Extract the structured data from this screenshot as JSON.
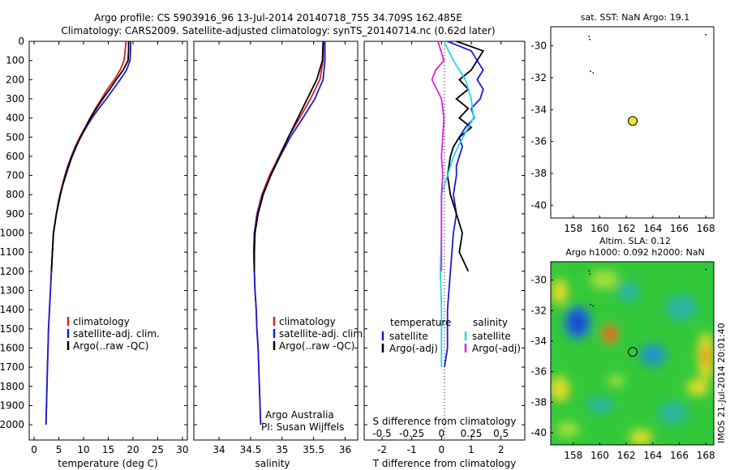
{
  "header": {
    "line1": "Argo profile: CS 5903916_96 13-Jul-2014 20140718_755 34.709S 162.485E",
    "line2": "Climatology: CARS2009. Satellite-adjusted climatology: synTS_20140714.nc (0.62d later)"
  },
  "depth_axis": {
    "ticks": [
      0,
      100,
      200,
      300,
      400,
      500,
      600,
      700,
      800,
      900,
      1000,
      1100,
      1200,
      1300,
      1400,
      1500,
      1600,
      1700,
      1800,
      1900,
      2000
    ],
    "range": [
      0,
      2080
    ],
    "reversed": true
  },
  "colors": {
    "climatology": "#d62020",
    "satellite": "#1a1adc",
    "argo": "#000000",
    "salinity_satellite": "#22d8e0",
    "salinity_argo": "#e020e0",
    "marker": "#e6e62a"
  },
  "chart_data": [
    {
      "type": "line",
      "name": "temperature-panel",
      "xlabel": "temperature (deg C)",
      "xlim": [
        -1,
        31
      ],
      "xticks": [
        0,
        5,
        10,
        15,
        20,
        25,
        30
      ],
      "legend": [
        "climatology",
        "satellite-adj. clim.",
        "Argo(..raw -QC)"
      ],
      "legend_placement": "lower-center",
      "series": [
        {
          "key": "climatology",
          "values": [
            [
              18.6,
              0
            ],
            [
              18.4,
              50
            ],
            [
              18.2,
              100
            ],
            [
              17.4,
              150
            ],
            [
              16.2,
              200
            ],
            [
              14.8,
              250
            ],
            [
              13.6,
              300
            ],
            [
              12.4,
              350
            ],
            [
              11.3,
              400
            ],
            [
              10.3,
              450
            ],
            [
              9.2,
              500
            ],
            [
              8.3,
              550
            ],
            [
              7.5,
              600
            ],
            [
              6.8,
              650
            ],
            [
              6.2,
              700
            ],
            [
              5.7,
              750
            ],
            [
              5.2,
              800
            ],
            [
              4.8,
              850
            ],
            [
              4.5,
              900
            ],
            [
              4.2,
              950
            ],
            [
              3.9,
              1000
            ],
            [
              3.7,
              1100
            ],
            [
              3.5,
              1200
            ],
            [
              3.3,
              1300
            ],
            [
              3.1,
              1400
            ],
            [
              2.9,
              1500
            ],
            [
              2.8,
              1600
            ],
            [
              2.7,
              1700
            ],
            [
              2.6,
              1800
            ],
            [
              2.5,
              1900
            ],
            [
              2.4,
              2000
            ]
          ]
        },
        {
          "key": "satellite",
          "values": [
            [
              19.5,
              0
            ],
            [
              19.5,
              50
            ],
            [
              19.4,
              100
            ],
            [
              18.7,
              150
            ],
            [
              17.4,
              200
            ],
            [
              16.0,
              250
            ],
            [
              14.6,
              300
            ],
            [
              13.1,
              350
            ],
            [
              11.7,
              400
            ],
            [
              10.5,
              450
            ],
            [
              9.4,
              500
            ],
            [
              8.4,
              550
            ],
            [
              7.6,
              600
            ],
            [
              6.9,
              650
            ],
            [
              6.3,
              700
            ],
            [
              5.8,
              750
            ],
            [
              5.3,
              800
            ],
            [
              4.9,
              850
            ],
            [
              4.5,
              900
            ],
            [
              4.2,
              950
            ],
            [
              3.9,
              1000
            ],
            [
              3.7,
              1100
            ],
            [
              3.5,
              1200
            ],
            [
              3.3,
              1300
            ],
            [
              3.1,
              1400
            ],
            [
              2.9,
              1500
            ],
            [
              2.8,
              1600
            ],
            [
              2.7,
              1700
            ],
            [
              2.6,
              1800
            ],
            [
              2.5,
              1900
            ],
            [
              2.4,
              2000
            ]
          ]
        },
        {
          "key": "argo",
          "values": [
            [
              19.1,
              0
            ],
            [
              19.1,
              50
            ],
            [
              19.0,
              100
            ],
            [
              18.0,
              150
            ],
            [
              16.6,
              200
            ],
            [
              15.3,
              250
            ],
            [
              13.9,
              300
            ],
            [
              12.6,
              350
            ],
            [
              11.4,
              400
            ],
            [
              10.4,
              450
            ],
            [
              9.4,
              500
            ],
            [
              8.5,
              550
            ],
            [
              7.7,
              600
            ],
            [
              7.0,
              650
            ],
            [
              6.4,
              700
            ],
            [
              5.8,
              750
            ],
            [
              5.3,
              800
            ],
            [
              4.9,
              850
            ],
            [
              4.5,
              900
            ],
            [
              4.2,
              950
            ],
            [
              3.9,
              1000
            ],
            [
              3.7,
              1100
            ],
            [
              3.5,
              1200
            ]
          ]
        }
      ]
    },
    {
      "type": "line",
      "name": "salinity-panel",
      "xlabel": "salinity",
      "xlim": [
        33.6,
        36.2
      ],
      "xticks": [
        34,
        34.5,
        35,
        35.5,
        36
      ],
      "xticklabels": [
        "34",
        "34.5",
        "35",
        "35.5",
        "36"
      ],
      "legend": [
        "climatology",
        "satellite-adj. clim.",
        "Argo(..raw -QC)"
      ],
      "legend_placement": "lower-center",
      "annotation": [
        "Argo Australia",
        "PI: Susan Wijffels"
      ],
      "series": [
        {
          "key": "climatology",
          "values": [
            [
              35.66,
              0
            ],
            [
              35.65,
              100
            ],
            [
              35.6,
              200
            ],
            [
              35.45,
              300
            ],
            [
              35.28,
              400
            ],
            [
              35.1,
              500
            ],
            [
              34.95,
              600
            ],
            [
              34.8,
              700
            ],
            [
              34.68,
              800
            ],
            [
              34.6,
              900
            ],
            [
              34.56,
              1000
            ],
            [
              34.55,
              1100
            ],
            [
              34.56,
              1200
            ],
            [
              34.57,
              1300
            ],
            [
              34.59,
              1400
            ],
            [
              34.6,
              1500
            ],
            [
              34.62,
              1600
            ],
            [
              34.63,
              1700
            ],
            [
              34.64,
              1800
            ],
            [
              34.65,
              1900
            ],
            [
              34.66,
              2000
            ]
          ]
        },
        {
          "key": "satellite",
          "values": [
            [
              35.68,
              0
            ],
            [
              35.68,
              100
            ],
            [
              35.65,
              200
            ],
            [
              35.52,
              300
            ],
            [
              35.33,
              400
            ],
            [
              35.13,
              500
            ],
            [
              34.97,
              600
            ],
            [
              34.82,
              700
            ],
            [
              34.69,
              800
            ],
            [
              34.61,
              900
            ],
            [
              34.56,
              1000
            ],
            [
              34.55,
              1100
            ],
            [
              34.56,
              1200
            ],
            [
              34.57,
              1300
            ],
            [
              34.59,
              1400
            ],
            [
              34.6,
              1500
            ],
            [
              34.62,
              1600
            ],
            [
              34.63,
              1700
            ],
            [
              34.64,
              1800
            ],
            [
              34.65,
              1900
            ],
            [
              34.66,
              2000
            ]
          ]
        },
        {
          "key": "argo",
          "values": [
            [
              35.65,
              0
            ],
            [
              35.64,
              100
            ],
            [
              35.55,
              200
            ],
            [
              35.4,
              300
            ],
            [
              35.25,
              400
            ],
            [
              35.1,
              500
            ],
            [
              34.96,
              600
            ],
            [
              34.82,
              700
            ],
            [
              34.7,
              800
            ],
            [
              34.62,
              900
            ],
            [
              34.57,
              1000
            ],
            [
              34.56,
              1100
            ],
            [
              34.56,
              1200
            ]
          ]
        }
      ]
    },
    {
      "type": "line",
      "name": "difference-panel",
      "xlabel": "T difference from climatology",
      "xlim": [
        -2.6,
        2.8
      ],
      "xticks": [
        -2,
        -1,
        0,
        1,
        2
      ],
      "xlabel_top": "S difference from climatology",
      "xticklabels_top": [
        "-0.5",
        "-0.25",
        "0",
        "0.25",
        "0.5"
      ],
      "legend_titles": [
        "temperature",
        "salinity"
      ],
      "legend": [
        "satellite",
        "Argo(-adj)",
        "satellite",
        "Argo(-adj)"
      ],
      "legend_placement": "lower-center",
      "series": [
        {
          "key": "satellite",
          "values": [
            [
              0.2,
              0
            ],
            [
              1.0,
              50
            ],
            [
              1.2,
              100
            ],
            [
              1.4,
              150
            ],
            [
              1.2,
              200
            ],
            [
              1.4,
              250
            ],
            [
              1.3,
              300
            ],
            [
              1.0,
              350
            ],
            [
              1.1,
              400
            ],
            [
              0.8,
              450
            ],
            [
              0.6,
              500
            ],
            [
              0.7,
              550
            ],
            [
              0.6,
              600
            ],
            [
              0.5,
              650
            ],
            [
              0.5,
              700
            ],
            [
              0.4,
              800
            ],
            [
              0.5,
              900
            ],
            [
              0.4,
              1000
            ],
            [
              0.3,
              1200
            ],
            [
              0.2,
              1400
            ],
            [
              0.2,
              1600
            ],
            [
              0.1,
              1700
            ]
          ]
        },
        {
          "key": "argo",
          "values": [
            [
              0.5,
              0
            ],
            [
              1.4,
              50
            ],
            [
              1.2,
              100
            ],
            [
              1.0,
              150
            ],
            [
              0.6,
              200
            ],
            [
              0.9,
              250
            ],
            [
              0.5,
              300
            ],
            [
              0.9,
              350
            ],
            [
              0.6,
              400
            ],
            [
              1.0,
              450
            ],
            [
              0.6,
              500
            ],
            [
              0.4,
              550
            ],
            [
              0.3,
              600
            ],
            [
              0.2,
              700
            ],
            [
              0.3,
              800
            ],
            [
              0.5,
              900
            ],
            [
              0.7,
              1000
            ],
            [
              0.6,
              1100
            ],
            [
              0.9,
              1200
            ]
          ]
        },
        {
          "key": "salinity_satellite",
          "values": [
            [
              0.02,
              0
            ],
            [
              0.1,
              100
            ],
            [
              0.2,
              200
            ],
            [
              0.25,
              300
            ],
            [
              0.27,
              400
            ],
            [
              0.18,
              500
            ],
            [
              0.1,
              600
            ],
            [
              0.05,
              700
            ],
            [
              0.0,
              800
            ],
            [
              0.0,
              1000
            ],
            [
              -0.01,
              1200
            ],
            [
              0.0,
              1400
            ],
            [
              0.0,
              1600
            ],
            [
              0.0,
              1700
            ]
          ]
        },
        {
          "key": "salinity_argo",
          "values": [
            [
              -0.03,
              0
            ],
            [
              0.02,
              100
            ],
            [
              -0.05,
              150
            ],
            [
              -0.08,
              200
            ],
            [
              -0.04,
              250
            ],
            [
              0.0,
              300
            ],
            [
              0.02,
              400
            ],
            [
              0.01,
              500
            ],
            [
              0.0,
              600
            ],
            [
              0.01,
              700
            ],
            [
              0.0,
              800
            ],
            [
              0.0,
              1000
            ],
            [
              0.0,
              1200
            ]
          ]
        }
      ]
    },
    {
      "type": "scatter",
      "name": "sst-map",
      "title": "sat. SST: NaN Argo: 19.1",
      "xlim": [
        156.3,
        168.6
      ],
      "ylim": [
        -40.8,
        -28.8
      ],
      "xticks": [
        158,
        160,
        162,
        164,
        166,
        168
      ],
      "yticks": [
        -30,
        -32,
        -34,
        -36,
        -38,
        -40
      ],
      "marker": {
        "x": 162.485,
        "y": -34.709
      },
      "grid": false
    },
    {
      "type": "heatmap",
      "name": "sla-map",
      "title_lines": [
        "Altim. SLA: 0.12",
        "Argo h1000: 0.092 h2000: NaN"
      ],
      "xlim": [
        156.3,
        168.6
      ],
      "ylim": [
        -40.8,
        -28.8
      ],
      "xticks": [
        158,
        160,
        162,
        164,
        166,
        168
      ],
      "yticks": [
        -30,
        -32,
        -34,
        -36,
        -38,
        -40
      ],
      "marker": {
        "x": 162.485,
        "y": -34.709
      },
      "grid": false
    }
  ],
  "footer": {
    "stamp": "IMOS 21-Jul-2014 20:01:40"
  }
}
